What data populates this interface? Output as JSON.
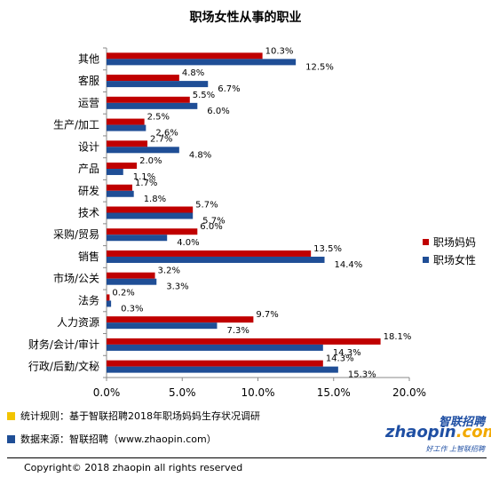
{
  "chart_data": {
    "type": "bar",
    "orientation": "horizontal",
    "title": "职场女性从事的职业",
    "categories": [
      "其他",
      "客服",
      "运营",
      "生产/加工",
      "设计",
      "产品",
      "研发",
      "技术",
      "采购/贸易",
      "销售",
      "市场/公关",
      "法务",
      "人力资源",
      "财务/会计/审计",
      "行政/后勤/文秘"
    ],
    "series": [
      {
        "name": "职场妈妈",
        "color": "#c00000",
        "values": [
          10.3,
          4.8,
          5.5,
          2.5,
          2.7,
          2.0,
          1.7,
          5.7,
          6.0,
          13.5,
          3.2,
          0.2,
          9.7,
          18.1,
          14.3
        ],
        "labels": [
          "10.3%",
          "4.8%",
          "5.5%",
          "2.5%",
          "2.7%",
          "2.0%",
          "1.7%",
          "5.7%",
          "6.0%",
          "13.5%",
          "3.2%",
          "0.2%",
          "9.7%",
          "18.1%",
          "14.3%"
        ]
      },
      {
        "name": "职场女性",
        "color": "#1f4e96",
        "values": [
          12.5,
          6.7,
          6.0,
          2.6,
          4.8,
          1.1,
          1.8,
          5.7,
          4.0,
          14.4,
          3.3,
          0.3,
          7.3,
          14.3,
          15.3
        ],
        "labels": [
          "12.5%",
          "6.7%",
          "6.0%",
          "2.6%",
          "4.8%",
          "1.1%",
          "1.8%",
          "5.7%",
          "4.0%",
          "14.4%",
          "3.3%",
          "0.3%",
          "7.3%",
          "14.3%",
          "15.3%"
        ]
      }
    ],
    "xlim": [
      0,
      20
    ],
    "xticks": [
      "0.0%",
      "5.0%",
      "10.0%",
      "15.0%",
      "20.0%"
    ],
    "grid": false,
    "legend_position": "right"
  },
  "footer": {
    "rule_text": "统计规则：基于智联招聘2018年职场妈妈生存状况调研",
    "source_text": "数据来源：智联招聘（www.zhaopin.com）",
    "rule_color": "#f2c400",
    "source_color": "#1f4e96"
  },
  "logo": {
    "cn": "智联招聘",
    "en_main": "zhaopin",
    "en_dot": ".com",
    "slogan": "好工作 上智联招聘"
  },
  "copyright": "Copyright© 2018 zhaopin all rights reserved"
}
